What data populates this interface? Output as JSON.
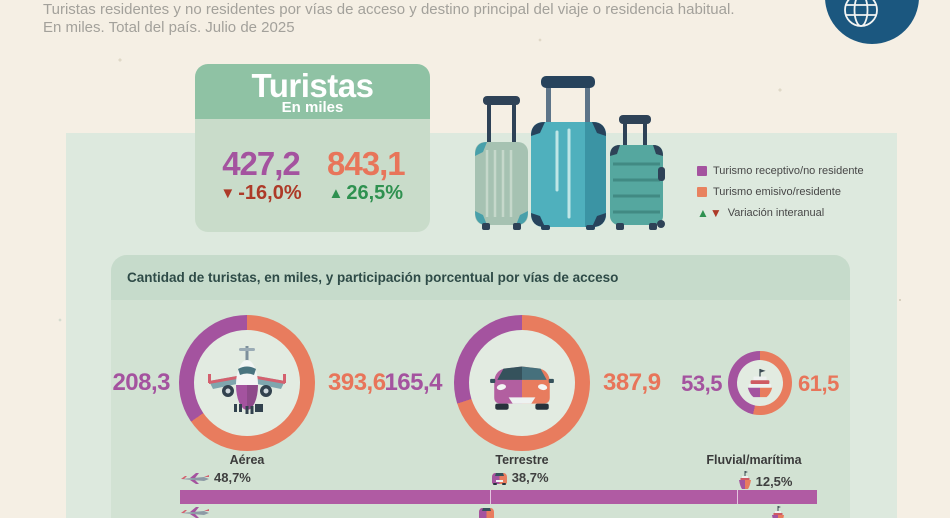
{
  "palette": {
    "purple": "#a4539f",
    "orange": "#e87c5e",
    "bar_purple": "#b05ba3",
    "red": "#ad3a28",
    "green": "#2f9150",
    "badge_blue": "#1b577f"
  },
  "header": {
    "line1": "Turistas residentes y no residentes por vías de acceso y destino principal del viaje o residencia habitual.",
    "line2": "En miles. Total del país. Julio de 2025"
  },
  "summary_card": {
    "title": "Turistas",
    "subtitle": "En miles",
    "receptive": {
      "value": "427,2",
      "variation": "-16,0%",
      "direction": "down"
    },
    "emissive": {
      "value": "843,1",
      "variation": "26,5%",
      "direction": "up"
    }
  },
  "legend": {
    "items": [
      {
        "label": "Turismo receptivo/no residente",
        "swatch": "#a4539f"
      },
      {
        "label": "Turismo emisivo/residente",
        "swatch": "#e8825f"
      },
      {
        "label": "Variación interanual",
        "swatch": "triangles-up-green-down-red"
      }
    ]
  },
  "access_section": {
    "title": "Cantidad de turistas, en miles, y participación porcentual por vías de acceso"
  },
  "chart_data": [
    {
      "type": "pie",
      "title": "Aérea",
      "labels": [
        "Turismo receptivo/no residente",
        "Turismo emisivo/residente"
      ],
      "values": [
        208.3,
        393.6
      ],
      "display_values": [
        "208,3",
        "393,6"
      ],
      "unit": "miles de turistas"
    },
    {
      "type": "pie",
      "title": "Terrestre",
      "labels": [
        "Turismo receptivo/no residente",
        "Turismo emisivo/residente"
      ],
      "values": [
        165.4,
        387.9
      ],
      "display_values": [
        "165,4",
        "387,9"
      ],
      "unit": "miles de turistas"
    },
    {
      "type": "pie",
      "title": "Fluvial/marítima",
      "labels": [
        "Turismo receptivo/no residente",
        "Turismo emisivo/residente"
      ],
      "values": [
        53.5,
        61.5
      ],
      "display_values": [
        "53,5",
        "61,5"
      ],
      "unit": "miles de turistas"
    },
    {
      "type": "bar",
      "subtype": "stacked_horizontal_100pct",
      "title": "Participación porcentual por vías de acceso — Turismo receptivo/no residente",
      "categories": [
        "Aérea",
        "Terrestre",
        "Fluvial/marítima"
      ],
      "values": [
        48.7,
        38.7,
        12.5
      ],
      "display_values": [
        "48,7%",
        "38,7%",
        "12,5%"
      ],
      "legend_position": "none",
      "grid": false
    }
  ]
}
